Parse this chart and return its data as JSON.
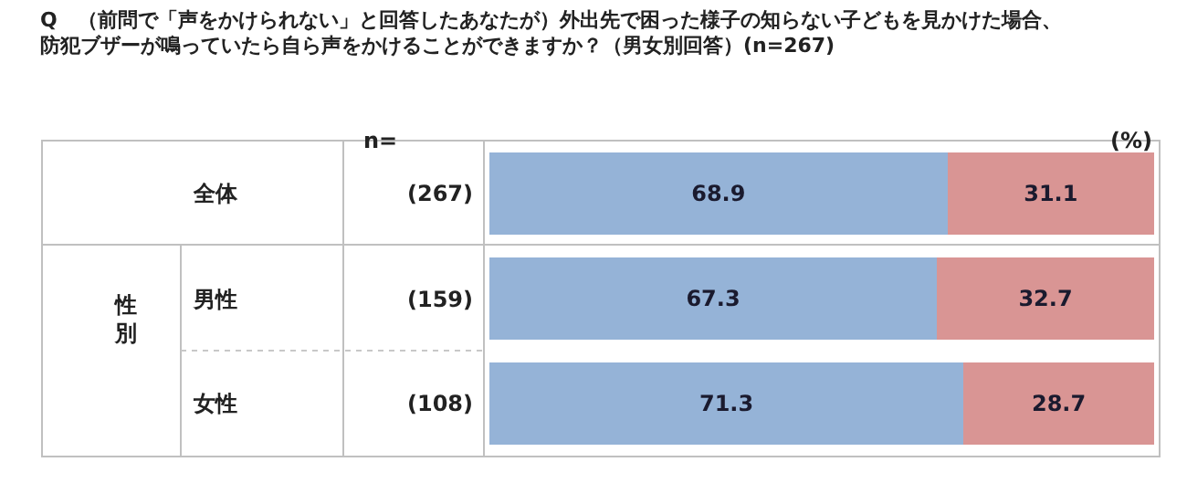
{
  "chart_data": {
    "type": "bar",
    "orientation": "horizontal",
    "stacked": true,
    "data_labels": true,
    "title": "Q　（前問で「声をかけられない」と回答したあなたが）外出先で困った様子の知らない子どもを見かけた場合、防犯ブザーが鳴っていたら自ら声をかけることができますか？（男女別回答）(n=267)",
    "categories": [
      "全体",
      "男性",
      "女性"
    ],
    "series": [
      {
        "color": "#95b3d7",
        "values": [
          68.9,
          67.3,
          71.3
        ]
      },
      {
        "color": "#d99594",
        "values": [
          31.1,
          32.7,
          28.7
        ]
      }
    ],
    "xlim": [
      0,
      100
    ],
    "tick_labels": "y",
    "annotations": [
      "n=",
      "(%)",
      "性別",
      "(267)",
      "(159)",
      "(108)"
    ]
  }
}
